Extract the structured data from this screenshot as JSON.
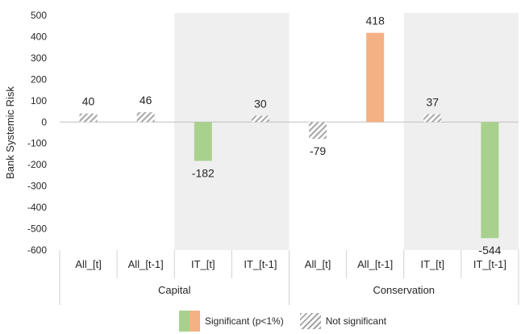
{
  "chart_data": {
    "type": "bar",
    "ylabel": "Bank Systemic Risk",
    "ylim": [
      -600,
      500
    ],
    "yticks": [
      500,
      400,
      300,
      200,
      100,
      0,
      -100,
      -200,
      -300,
      -400,
      -500,
      -600
    ],
    "groups": [
      "Capital",
      "Conservation"
    ],
    "categories": [
      "All_[t]",
      "All_[t-1]",
      "IT_[t]",
      "IT_[t-1]",
      "All_[t]",
      "All_[t-1]",
      "IT_[t]",
      "IT_[t-1]"
    ],
    "values": [
      40,
      46,
      -182,
      30,
      -79,
      418,
      37,
      -544
    ],
    "significance": [
      "not_significant",
      "not_significant",
      "significant",
      "not_significant",
      "not_significant",
      "significant",
      "not_significant",
      "significant"
    ],
    "shaded_categories": [
      2,
      3,
      6,
      7
    ],
    "legend": {
      "significant_label": "Significant (p<1%)",
      "not_significant_label": "Not significant"
    },
    "colors": {
      "significant_positive": "#f4b183",
      "significant_negative": "#a9d18e",
      "hatch": "#a6a6a6",
      "shade": "#efefef"
    }
  }
}
